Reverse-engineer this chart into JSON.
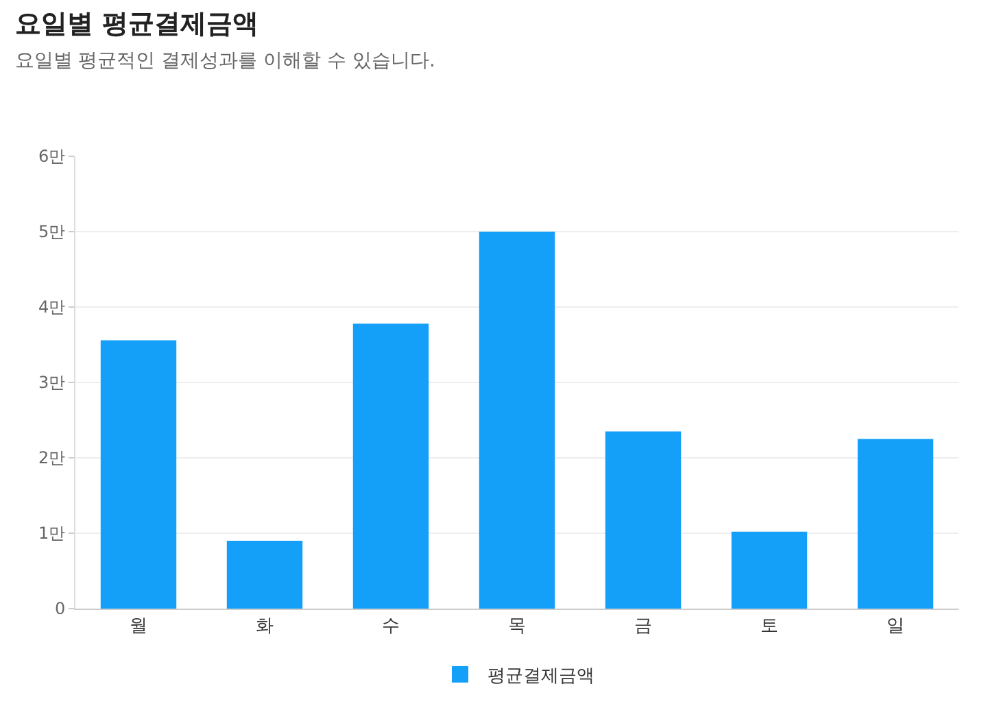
{
  "chart_data": {
    "type": "bar",
    "title": "요일별 평균결제금액",
    "subtitle": "요일별 평균적인 결제성과를 이해할 수 있습니다.",
    "categories": [
      "월",
      "화",
      "수",
      "목",
      "금",
      "토",
      "일"
    ],
    "series": [
      {
        "name": "평균결제금액",
        "color": "#149ff8",
        "values": [
          3.56,
          0.9,
          3.78,
          5.0,
          2.35,
          1.02,
          2.25
        ]
      }
    ],
    "ylim": [
      0,
      6
    ],
    "yticks": [
      0,
      {
        "value": 1,
        "label": "1만"
      },
      {
        "value": 2,
        "label": "2만"
      },
      {
        "value": 3,
        "label": "3만"
      },
      {
        "value": 4,
        "label": "4만"
      },
      {
        "value": 5,
        "label": "5만"
      },
      {
        "value": 6,
        "label": "6만"
      }
    ],
    "grid": "y",
    "legend": "bottom"
  }
}
